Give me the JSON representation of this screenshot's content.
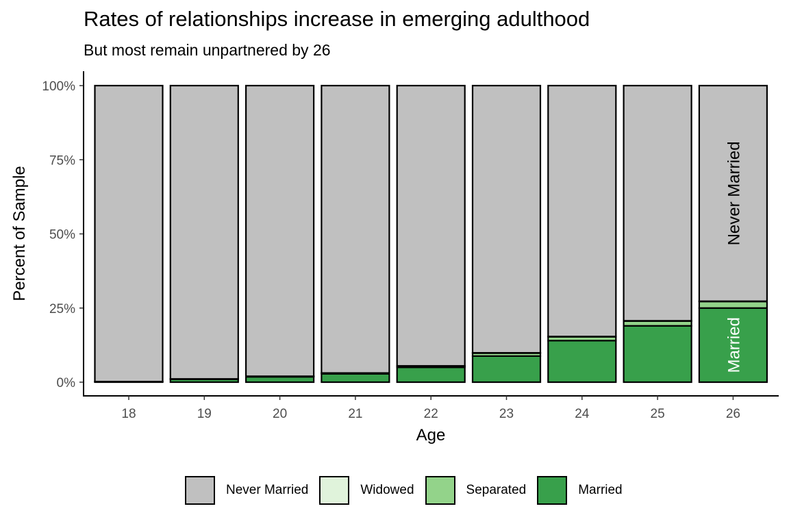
{
  "title": "Rates of relationships increase in emerging adulthood",
  "subtitle": "But most remain unpartnered by 26",
  "chart_data": {
    "type": "bar",
    "stacked": true,
    "title": "Rates of relationships increase in emerging adulthood",
    "subtitle": "But most remain unpartnered by 26",
    "xlabel": "Age",
    "ylabel": "Percent of Sample",
    "categories": [
      "18",
      "19",
      "20",
      "21",
      "22",
      "23",
      "24",
      "25",
      "26"
    ],
    "ylim": [
      0,
      100
    ],
    "yticks": [
      0,
      25,
      50,
      75,
      100
    ],
    "ytick_labels": [
      "0%",
      "25%",
      "50%",
      "75%",
      "100%"
    ],
    "series": [
      {
        "name": "Married",
        "color": "#38a04b",
        "values": [
          0.2,
          1.0,
          1.8,
          2.8,
          5.0,
          8.8,
          14.0,
          19.0,
          25.0
        ]
      },
      {
        "name": "Separated",
        "color": "#93d38a",
        "values": [
          0.0,
          0.1,
          0.2,
          0.3,
          0.4,
          1.0,
          1.3,
          1.6,
          2.2
        ]
      },
      {
        "name": "Widowed",
        "color": "#e0f3db",
        "values": [
          0.0,
          0.0,
          0.0,
          0.0,
          0.1,
          0.1,
          0.1,
          0.1,
          0.1
        ]
      },
      {
        "name": "Never Married",
        "color": "#c0c0c0",
        "values": [
          99.8,
          98.9,
          98.0,
          96.9,
          94.5,
          90.1,
          84.6,
          79.3,
          72.7
        ]
      }
    ],
    "bar_labels": [
      {
        "category": "26",
        "series": "Never Married",
        "text": "Never Married",
        "color": "#000000"
      },
      {
        "category": "26",
        "series": "Married",
        "text": "Married",
        "color": "#ffffff"
      }
    ],
    "legend": {
      "position": "bottom",
      "entries": [
        {
          "label": "Never Married",
          "color": "#c0c0c0"
        },
        {
          "label": "Widowed",
          "color": "#e0f3db"
        },
        {
          "label": "Separated",
          "color": "#93d38a"
        },
        {
          "label": "Married",
          "color": "#38a04b"
        }
      ]
    },
    "grid": false
  }
}
